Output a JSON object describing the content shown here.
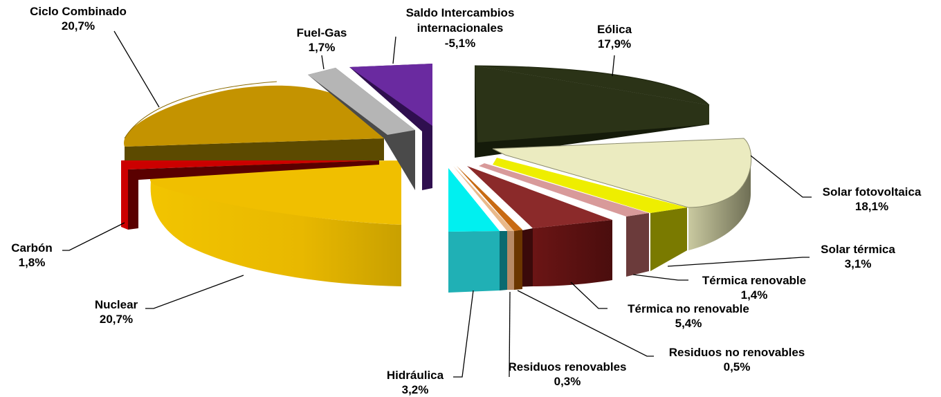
{
  "chart_data": {
    "type": "pie",
    "title": "",
    "slices": [
      {
        "name": "Eólica",
        "value_label": "17,9%",
        "value": 17.9,
        "color": "#2b3317"
      },
      {
        "name": "Solar fotovoltaica",
        "value_label": "18,1%",
        "value": 18.1,
        "color": "#ebebc0"
      },
      {
        "name": "Solar térmica",
        "value_label": "3,1%",
        "value": 3.1,
        "color": "#eeee00"
      },
      {
        "name": "Térmica renovable",
        "value_label": "1,4%",
        "value": 1.4,
        "color": "#d89a9a"
      },
      {
        "name": "Térmica no renovable",
        "value_label": "5,4%",
        "value": 5.4,
        "color": "#8b2a2a"
      },
      {
        "name": "Residuos no renovables",
        "value_label": "0,5%",
        "value": 0.5,
        "color": "#c86a12"
      },
      {
        "name": "Residuos renovables",
        "value_label": "0,3%",
        "value": 0.3,
        "color": "#e9b98a"
      },
      {
        "name": "Hidráulica",
        "value_label": "3,2%",
        "value": 3.2,
        "color": "#00f0f0"
      },
      {
        "name": "Nuclear",
        "value_label": "20,7%",
        "value": 20.7,
        "color": "#f0bf00"
      },
      {
        "name": "Carbón",
        "value_label": "1,8%",
        "value": 1.8,
        "color": "#cc0000"
      },
      {
        "name": "Ciclo Combinado",
        "value_label": "20,7%",
        "value": 20.7,
        "color": "#c49300"
      },
      {
        "name": "Fuel-Gas",
        "value_label": "1,7%",
        "value": 1.7,
        "color": "#b5b5b5"
      },
      {
        "name": "Saldo Intercambios internacionales",
        "value_label": "-5,1%",
        "value": -5.1,
        "color": "#6a2aa0"
      }
    ]
  }
}
